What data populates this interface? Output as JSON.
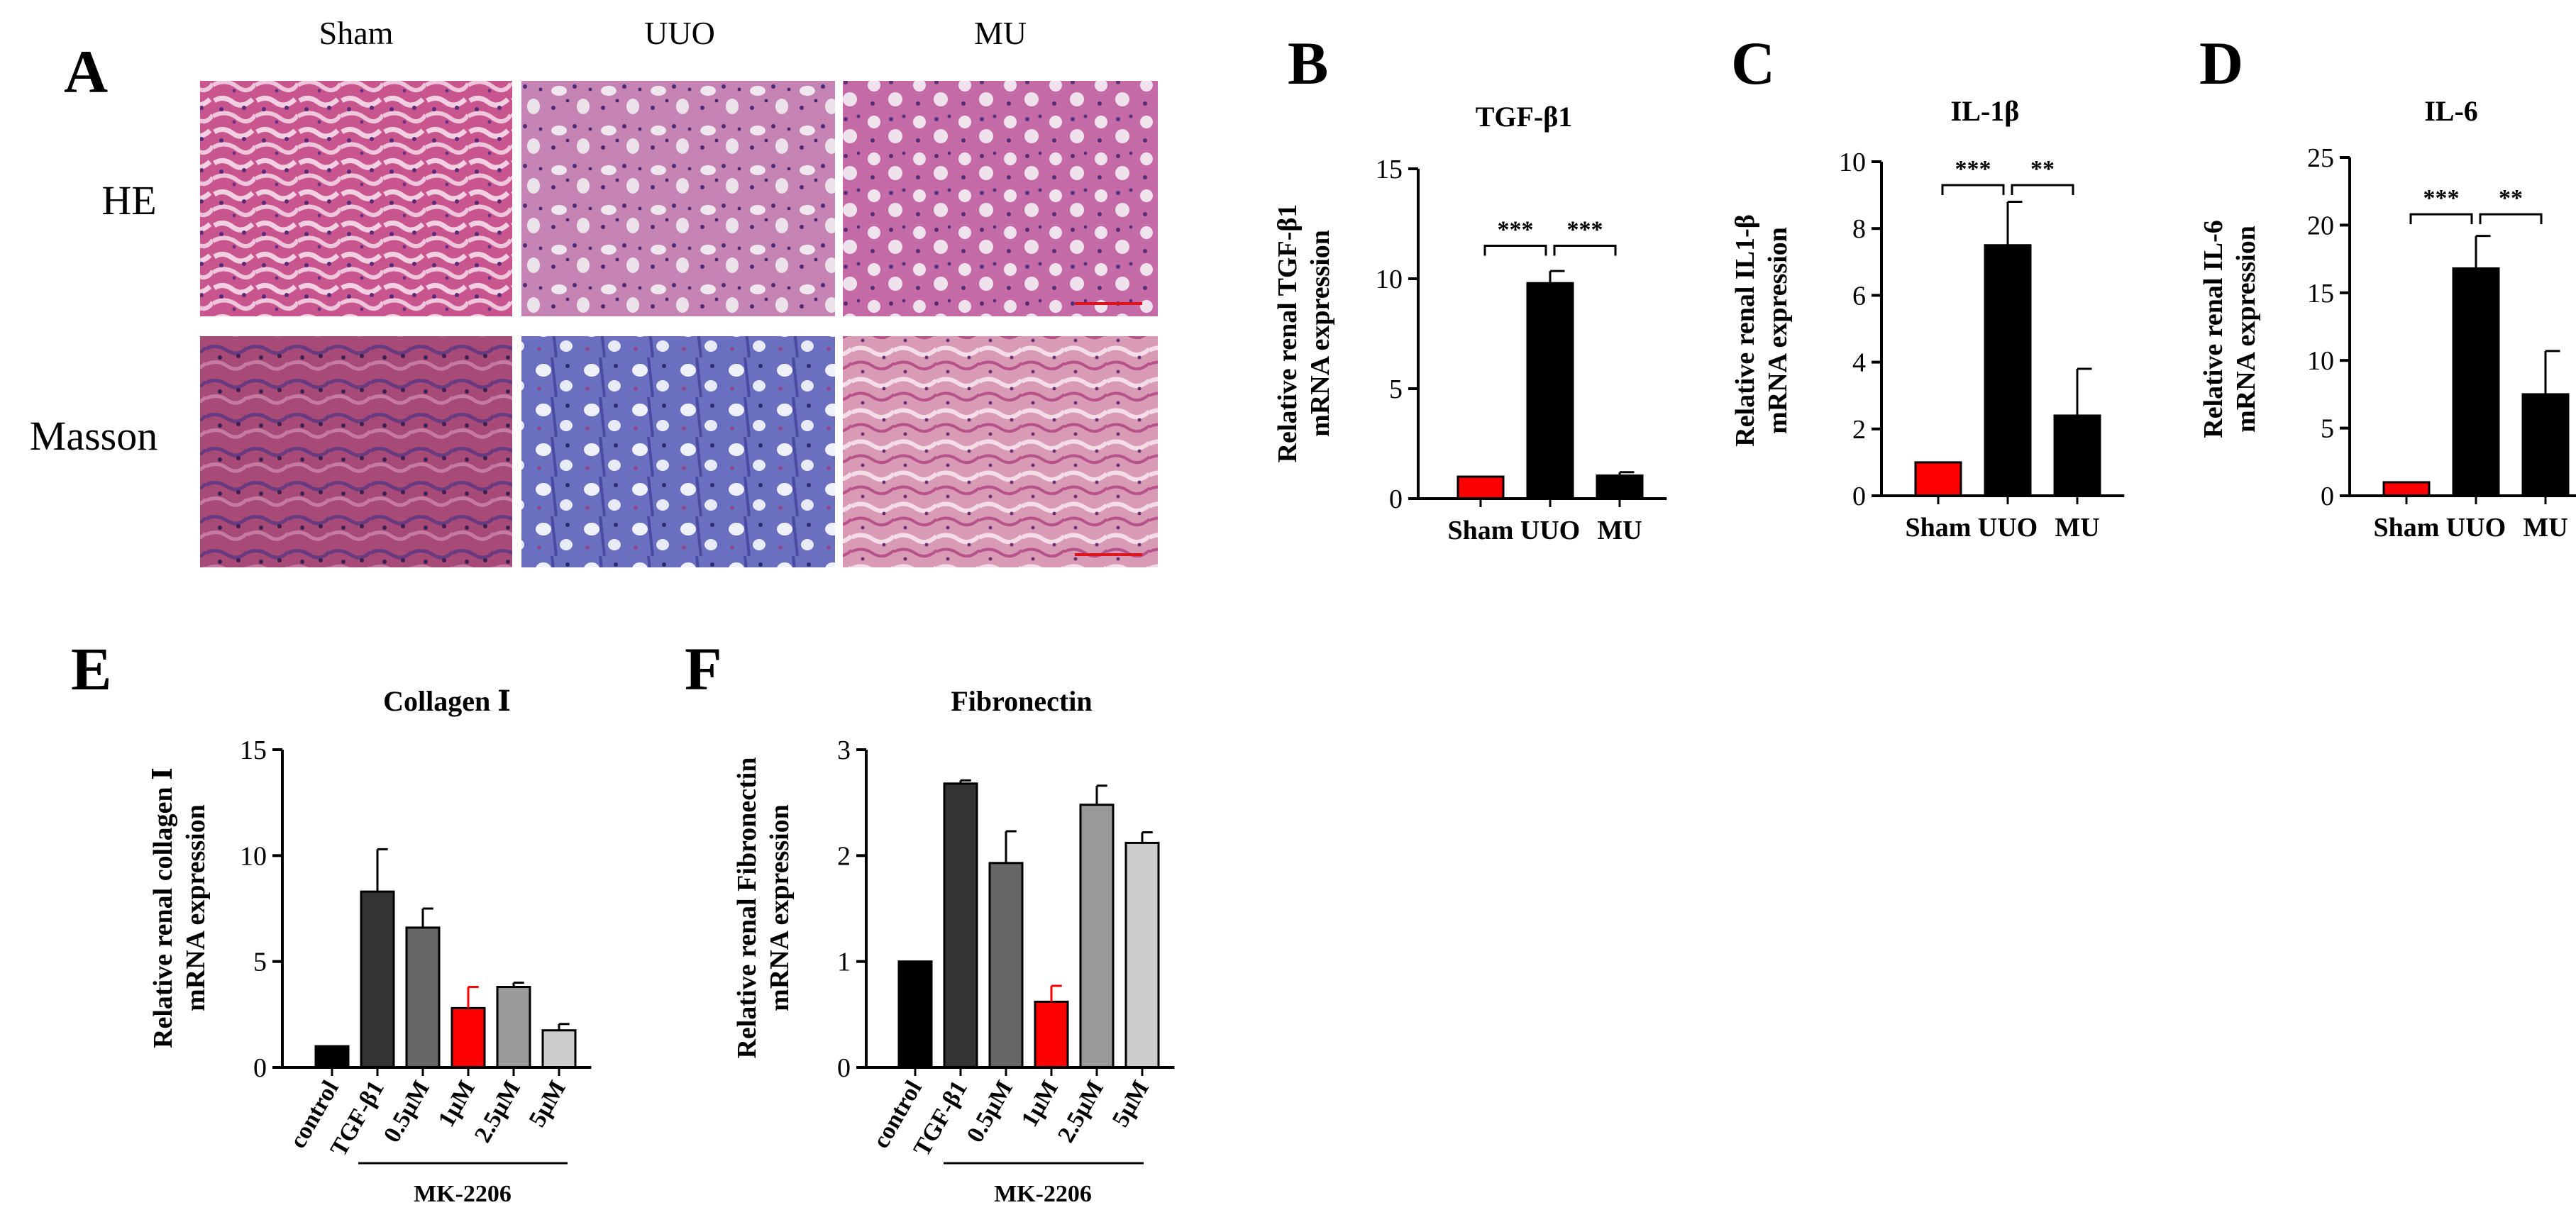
{
  "panel_A": {
    "panel_letter": "A",
    "column_labels": [
      "Sham",
      "UUO",
      "MU"
    ],
    "row_labels": [
      "HE",
      "Masson"
    ]
  },
  "chart_data": [
    {
      "panel_letter": "B",
      "type": "bar",
      "title": "TGF-β1",
      "ylabel_lines": [
        "Relative renal TGF-β1",
        "mRNA expression"
      ],
      "categories": [
        "Sham",
        "UUO",
        "MU"
      ],
      "values": [
        1.0,
        9.8,
        1.05
      ],
      "errors": [
        0,
        0.55,
        0.15
      ],
      "colors": [
        "#ff0000",
        "#000000",
        "#000000"
      ],
      "ylim": [
        0,
        15
      ],
      "yticks": [
        "0",
        "5",
        "10",
        "15"
      ],
      "significance": [
        {
          "from": 0,
          "to": 1,
          "label": "***",
          "y": 11.5
        },
        {
          "from": 1,
          "to": 2,
          "label": "***",
          "y": 11.5
        }
      ]
    },
    {
      "panel_letter": "C",
      "type": "bar",
      "title": "IL-1β",
      "ylabel_lines": [
        "Relative renal IL1-β",
        "mRNA expression"
      ],
      "categories": [
        "Sham",
        "UUO",
        "MU"
      ],
      "values": [
        1.0,
        7.5,
        2.4
      ],
      "errors": [
        0,
        1.3,
        1.4
      ],
      "colors": [
        "#ff0000",
        "#000000",
        "#000000"
      ],
      "ylim": [
        0,
        10
      ],
      "yticks": [
        "0",
        "2",
        "4",
        "6",
        "8",
        "10"
      ],
      "significance": [
        {
          "from": 0,
          "to": 1,
          "label": "***",
          "y": 9.3
        },
        {
          "from": 1,
          "to": 2,
          "label": "**",
          "y": 9.3
        }
      ]
    },
    {
      "panel_letter": "D",
      "type": "bar",
      "title": "IL-6",
      "ylabel_lines": [
        "Relative renal IL-6",
        "mRNA expression"
      ],
      "categories": [
        "Sham",
        "UUO",
        "MU"
      ],
      "values": [
        1.0,
        16.8,
        7.5
      ],
      "errors": [
        0,
        2.4,
        3.2
      ],
      "colors": [
        "#ff0000",
        "#000000",
        "#000000"
      ],
      "ylim": [
        0,
        25
      ],
      "yticks": [
        "0",
        "5",
        "10",
        "15",
        "20",
        "25"
      ],
      "significance": [
        {
          "from": 0,
          "to": 1,
          "label": "***",
          "y": 20.8
        },
        {
          "from": 1,
          "to": 2,
          "label": "**",
          "y": 20.8
        }
      ]
    },
    {
      "panel_letter": "E",
      "type": "bar",
      "title": "Collagen Ⅰ",
      "ylabel_lines": [
        "Relative renal collagen Ⅰ",
        "mRNA expression"
      ],
      "categories": [
        "control",
        "TGF-β1",
        "0.5μM",
        "1μM",
        "2.5μM",
        "5μM"
      ],
      "values": [
        1.0,
        8.3,
        6.6,
        2.8,
        3.8,
        1.75
      ],
      "errors": [
        0,
        2.0,
        0.9,
        1.0,
        0.2,
        0.3
      ],
      "colors": [
        "#000000",
        "#333333",
        "#666666",
        "#ff0000",
        "#999999",
        "#cccccc"
      ],
      "ylim": [
        0,
        15
      ],
      "yticks": [
        "0",
        "5",
        "10",
        "15"
      ],
      "group_label": "MK-2206"
    },
    {
      "panel_letter": "F",
      "type": "bar",
      "title": "Fibronectin",
      "ylabel_lines": [
        "Relative renal Fibronectin",
        "mRNA expression"
      ],
      "categories": [
        "control",
        "TGF-β1",
        "0.5μM",
        "1μM",
        "2.5μM",
        "5μM"
      ],
      "values": [
        1.0,
        2.68,
        1.93,
        0.62,
        2.48,
        2.12
      ],
      "errors": [
        0,
        0.03,
        0.3,
        0.15,
        0.18,
        0.1
      ],
      "colors": [
        "#000000",
        "#333333",
        "#666666",
        "#ff0000",
        "#999999",
        "#cccccc"
      ],
      "ylim": [
        0,
        3
      ],
      "yticks": [
        "0",
        "1",
        "2",
        "3"
      ],
      "group_label": "MK-2206"
    }
  ]
}
